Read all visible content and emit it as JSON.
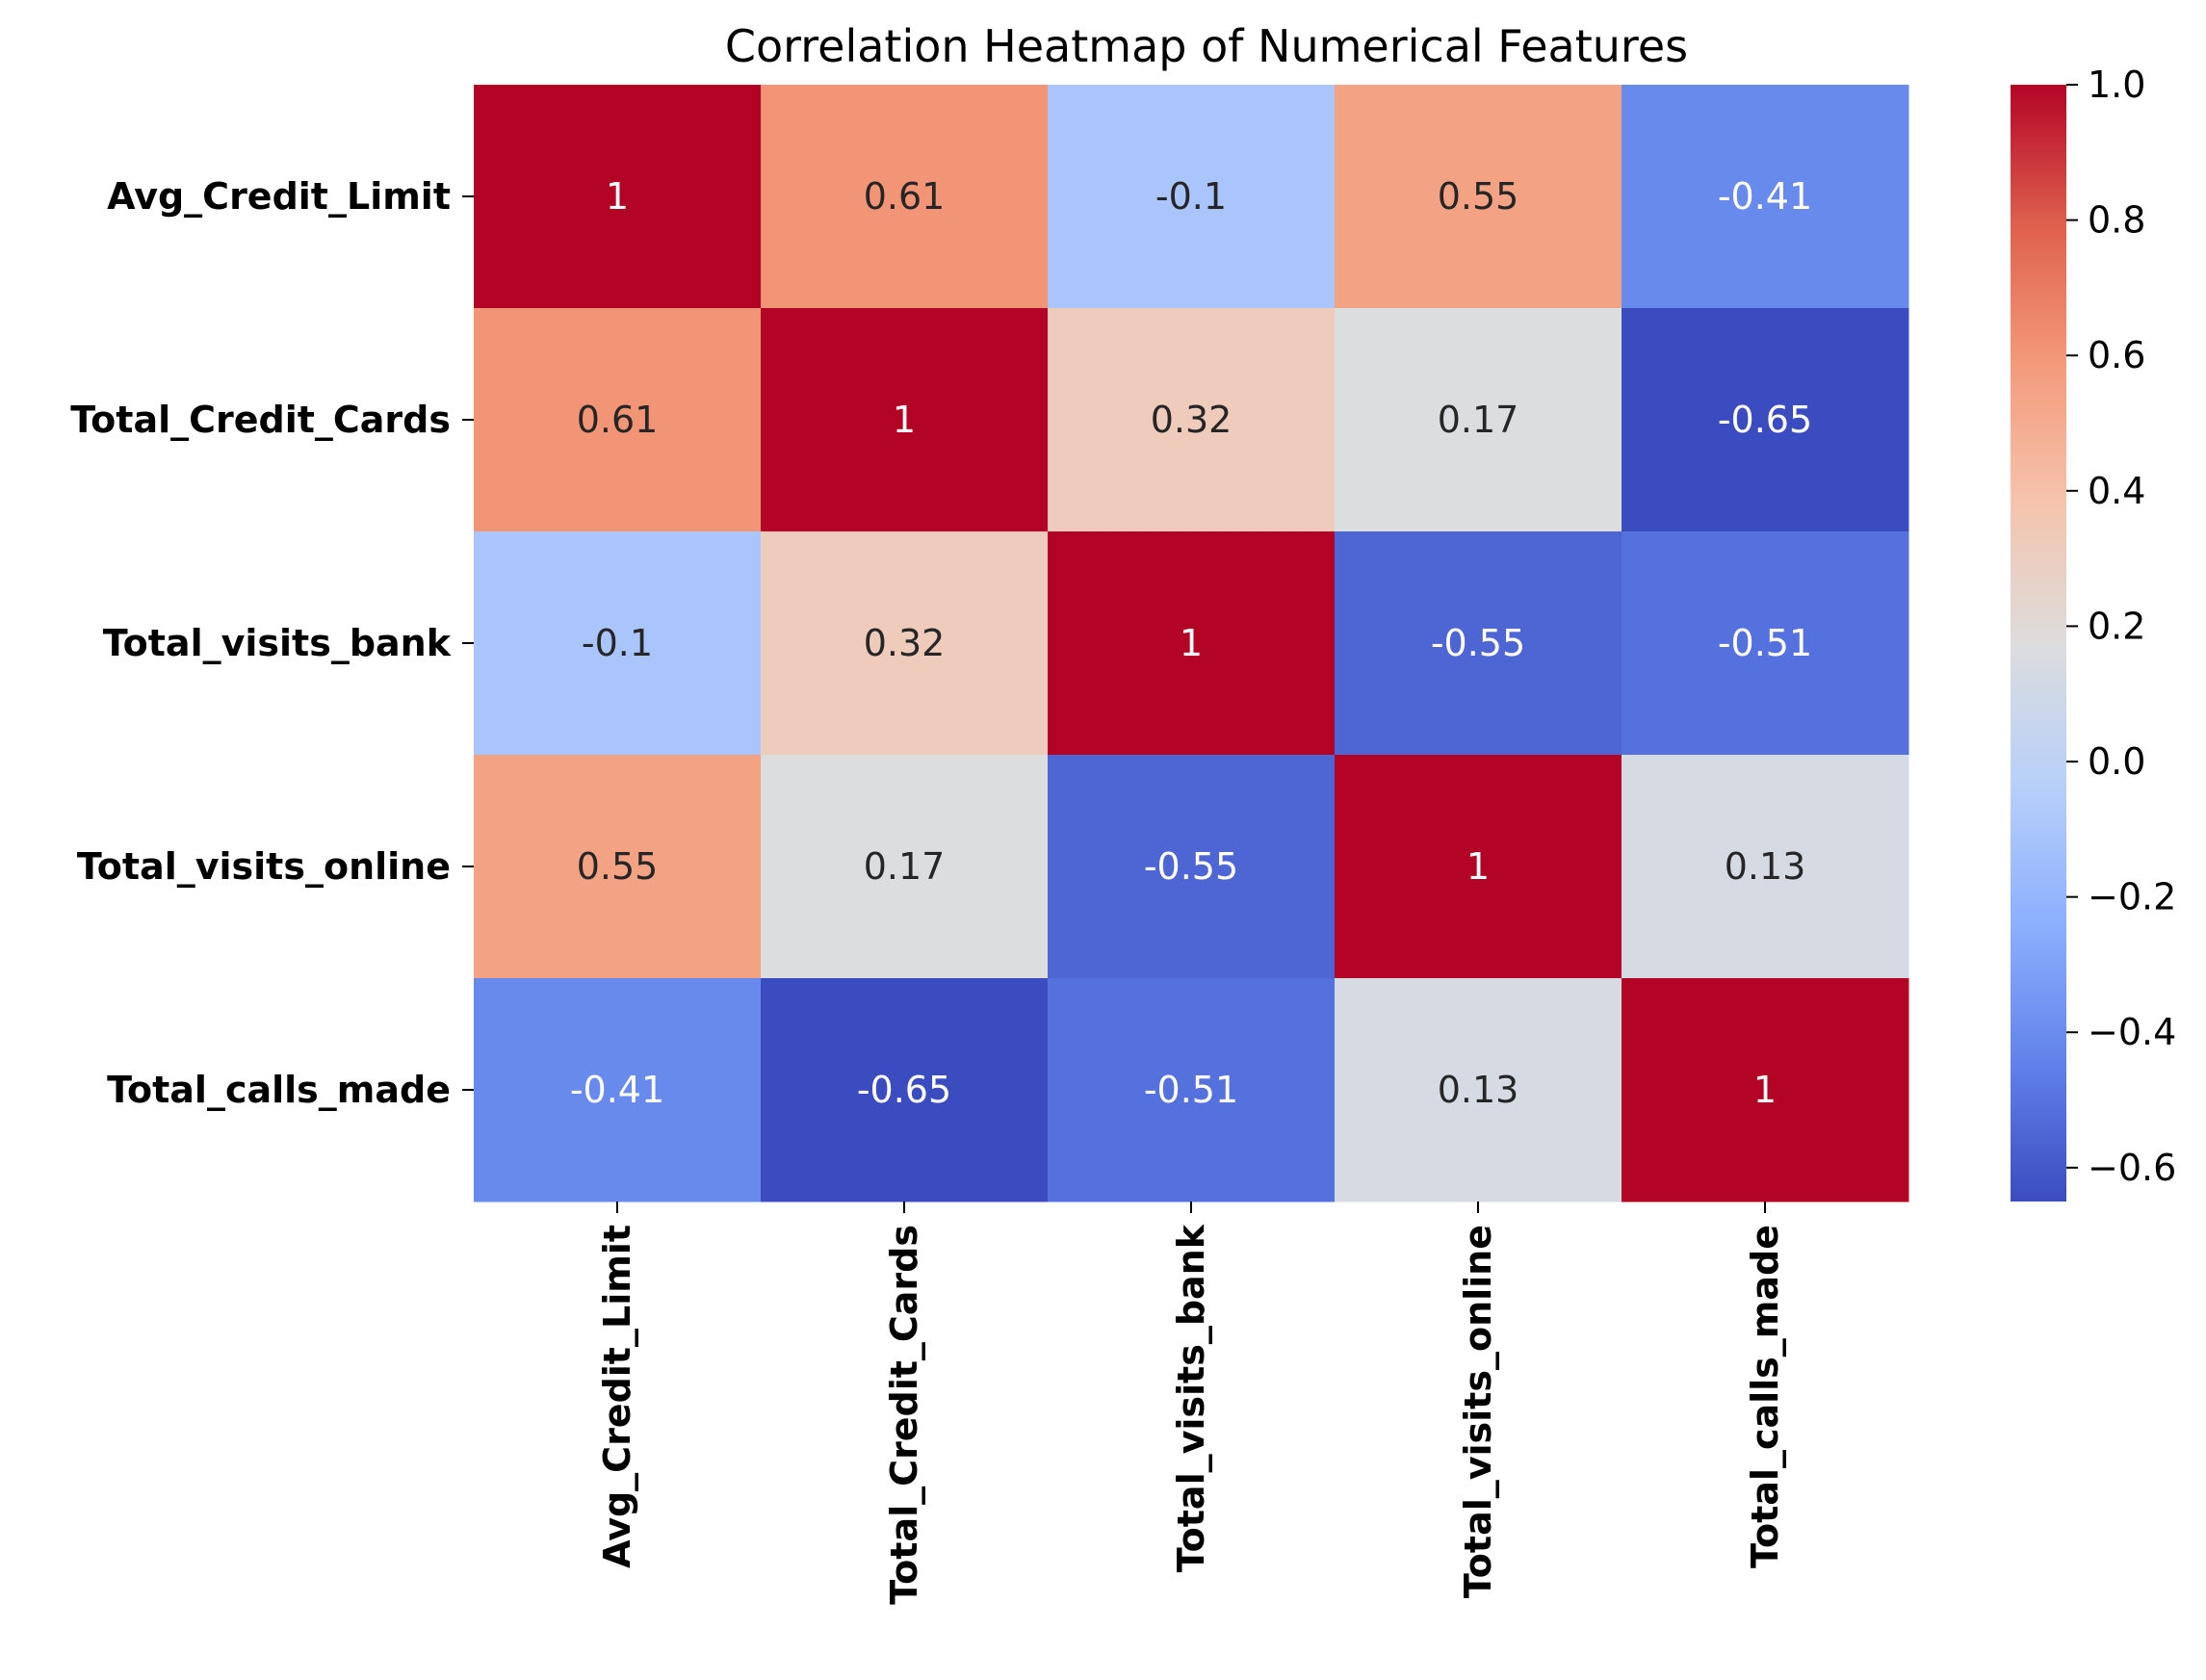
{
  "chart_data": {
    "type": "heatmap",
    "title": "Correlation Heatmap of Numerical Features",
    "rows": [
      "Avg_Credit_Limit",
      "Total_Credit_Cards",
      "Total_visits_bank",
      "Total_visits_online",
      "Total_calls_made"
    ],
    "columns": [
      "Avg_Credit_Limit",
      "Total_Credit_Cards",
      "Total_visits_bank",
      "Total_visits_online",
      "Total_calls_made"
    ],
    "values": [
      [
        1,
        0.61,
        -0.1,
        0.55,
        -0.41
      ],
      [
        0.61,
        1,
        0.32,
        0.17,
        -0.65
      ],
      [
        -0.1,
        0.32,
        1,
        -0.55,
        -0.51
      ],
      [
        0.55,
        0.17,
        -0.55,
        1,
        0.13
      ],
      [
        -0.41,
        -0.65,
        -0.51,
        0.13,
        1
      ]
    ],
    "cell_labels": [
      [
        "1",
        "0.61",
        "-0.1",
        "0.55",
        "-0.41"
      ],
      [
        "0.61",
        "1",
        "0.32",
        "0.17",
        "-0.65"
      ],
      [
        "-0.1",
        "0.32",
        "1",
        "-0.55",
        "-0.51"
      ],
      [
        "0.55",
        "0.17",
        "-0.55",
        "1",
        "0.13"
      ],
      [
        "-0.41",
        "-0.65",
        "-0.51",
        "0.13",
        "1"
      ]
    ],
    "colormap": "coolwarm",
    "colorbar": {
      "range": [
        -0.65,
        1.0
      ],
      "tick_values": [
        1.0,
        0.8,
        0.6,
        0.4,
        0.2,
        0.0,
        -0.2,
        -0.4,
        -0.6
      ],
      "tick_labels": [
        "1.0",
        "0.8",
        "0.6",
        "0.4",
        "0.2",
        "0.0",
        "−0.2",
        "−0.4",
        "−0.6"
      ],
      "placement": "right"
    },
    "grid": false
  }
}
